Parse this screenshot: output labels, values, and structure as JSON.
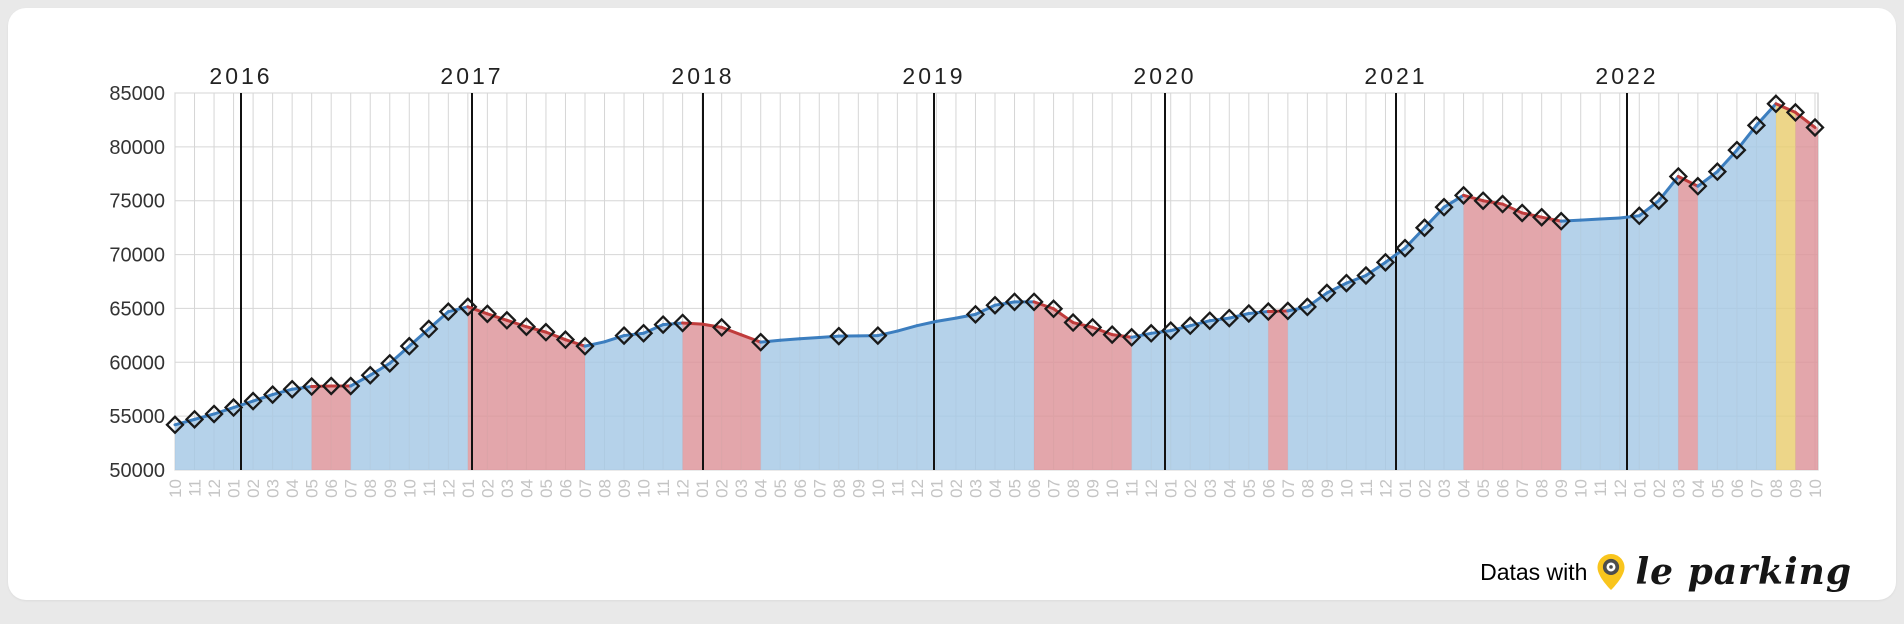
{
  "page": {
    "background_color": "#e9e9e9",
    "card_background": "#ffffff"
  },
  "branding": {
    "text": "Datas with",
    "pin_icon": "location-pin-icon",
    "pin_color": "#f9c51d",
    "logo_text": "le parking"
  },
  "chart_data": {
    "type": "area",
    "title": "",
    "xlabel": "",
    "ylabel": "",
    "legend": "none",
    "grid": true,
    "ylim": [
      50000,
      85000
    ],
    "y_ticks": [
      50000,
      55000,
      60000,
      65000,
      70000,
      75000,
      80000,
      85000
    ],
    "period_start": "2015-10",
    "period_end": "2022-10",
    "x_labels": [
      "10",
      "11",
      "12",
      "01",
      "02",
      "03",
      "04",
      "05",
      "06",
      "07",
      "08",
      "09",
      "10",
      "11",
      "12",
      "01",
      "02",
      "03",
      "04",
      "05",
      "06",
      "07",
      "08",
      "09",
      "10",
      "11",
      "12",
      "01",
      "02",
      "03",
      "04",
      "05",
      "06",
      "07",
      "08",
      "09",
      "10",
      "11",
      "12",
      "01",
      "02",
      "03",
      "04",
      "05",
      "06",
      "07",
      "08",
      "09",
      "10",
      "11",
      "12",
      "01",
      "02",
      "03",
      "04",
      "05",
      "06",
      "07",
      "08",
      "09",
      "10",
      "11",
      "12",
      "01",
      "02",
      "03",
      "04",
      "05",
      "06",
      "07",
      "08",
      "09",
      "10",
      "11",
      "12",
      "01",
      "02",
      "03",
      "04",
      "05",
      "06",
      "07",
      "08",
      "09",
      "10"
    ],
    "values": [
      54200,
      54700,
      55200,
      55800,
      56400,
      57000,
      57500,
      57750,
      57800,
      57800,
      58800,
      59900,
      61500,
      63100,
      64700,
      65150,
      64500,
      63900,
      63300,
      62800,
      62100,
      61500,
      61900,
      62480,
      62700,
      63500,
      63650,
      63540,
      63240,
      62550,
      61870,
      62050,
      62180,
      62300,
      62430,
      62450,
      62480,
      62900,
      63400,
      63800,
      64100,
      64450,
      65300,
      65610,
      65610,
      64970,
      63690,
      63240,
      62570,
      62320,
      62690,
      62940,
      63400,
      63860,
      64100,
      64530,
      64710,
      64770,
      65140,
      66440,
      67350,
      68060,
      69280,
      70600,
      72490,
      74400,
      75500,
      75000,
      74690,
      73865,
      73470,
      73100,
      73200,
      73300,
      73400,
      73600,
      75000,
      77250,
      76350,
      77700,
      79700,
      82000,
      84000,
      83200,
      81800
    ],
    "no_marker_indices": [
      22,
      27,
      29,
      31,
      32,
      33,
      35,
      37,
      38,
      39,
      40,
      72,
      73,
      74
    ],
    "pink_columns": [
      8,
      9,
      16,
      17,
      18,
      19,
      20,
      21,
      27,
      28,
      29,
      30,
      45,
      46,
      47,
      48,
      49,
      57,
      67,
      68,
      69,
      70,
      71,
      78,
      84
    ],
    "yellow_columns": [
      83
    ],
    "years": [
      "2016",
      "2017",
      "2018",
      "2019",
      "2020",
      "2021",
      "2022"
    ],
    "year_line_before_indices": [
      3,
      15,
      27,
      39,
      51,
      63,
      75
    ],
    "colors": {
      "area_blue": "#a5c8e5",
      "area_pink": "#dd9298",
      "area_yellow": "#e9cd6f",
      "line_blue": "#3c7ebf",
      "line_red": "#c03c3c",
      "marker_stroke": "#1a1a1a",
      "gridline": "#d6d6d6",
      "plot_border": "#c2c2c2",
      "year_line": "#111111",
      "y_tick_text": "#333333",
      "year_text": "#222222",
      "month_text": "#c4c4c4"
    }
  }
}
